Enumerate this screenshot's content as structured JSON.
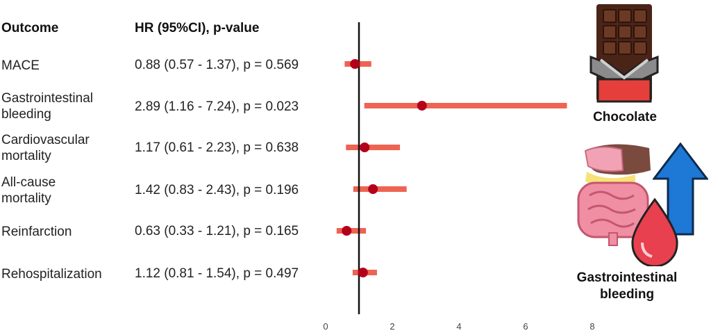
{
  "header": {
    "outcome": "Outcome",
    "hr": "HR (95%CI), p-value"
  },
  "rows": [
    {
      "label": "MACE",
      "hr_text": "0.88 (0.57 - 1.37), p = 0.569"
    },
    {
      "label": "Gastrointestinal bleeding",
      "hr_text": "2.89 (1.16 - 7.24), p = 0.023"
    },
    {
      "label": "Cardiovascular mortality",
      "hr_text": "1.17 (0.61 - 2.23), p = 0.638"
    },
    {
      "label": "All-cause mortality",
      "hr_text": "1.42 (0.83 - 2.43), p = 0.196"
    },
    {
      "label": "Reinfarction",
      "hr_text": "0.63 (0.33 - 1.21), p = 0.165"
    },
    {
      "label": "Rehospitalization",
      "hr_text": "1.12 (0.81 - 1.54), p = 0.497"
    }
  ],
  "chart_data": {
    "type": "forest",
    "categories": [
      "MACE",
      "Gastrointestinal bleeding",
      "Cardiovascular mortality",
      "All-cause mortality",
      "Reinfarction",
      "Rehospitalization"
    ],
    "estimates": [
      0.88,
      2.89,
      1.17,
      1.42,
      0.63,
      1.12
    ],
    "lower": [
      0.57,
      1.16,
      0.61,
      0.83,
      0.33,
      0.81
    ],
    "upper": [
      1.37,
      7.24,
      2.23,
      2.43,
      1.21,
      1.54
    ],
    "reference_line": 1,
    "xlim": [
      0,
      8
    ],
    "xticks": [
      0,
      2,
      4,
      6,
      8
    ],
    "colors": {
      "ci": "#ee6352",
      "point": "#b3001b",
      "refline": "#111111"
    }
  },
  "illustrations": {
    "chocolate_caption": "Chocolate",
    "gi_caption": "Gastrointestinal bleeding",
    "chocolate_icon": "chocolate-bar-icon",
    "intestine_icon": "intestine-icon",
    "drop_icon": "blood-drop-icon",
    "arrow_icon": "up-arrow-icon"
  }
}
